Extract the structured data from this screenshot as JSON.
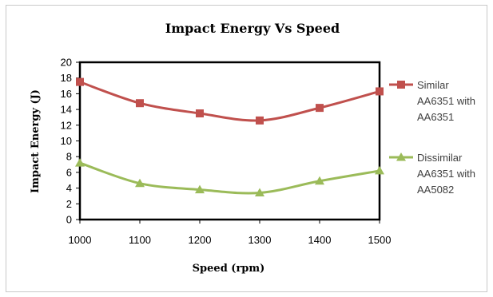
{
  "chart_data": {
    "type": "line",
    "title": "Impact Energy Vs Speed",
    "xlabel": "Speed (rpm)",
    "ylabel": "Impact Energy (J)",
    "x": [
      1000,
      1100,
      1200,
      1300,
      1400,
      1500
    ],
    "ylim": [
      0,
      20
    ],
    "yticks": [
      0,
      2,
      4,
      6,
      8,
      10,
      12,
      14,
      16,
      18,
      20
    ],
    "xtick_labels": [
      "1000",
      "1100",
      "1200",
      "1300",
      "1400",
      "1500"
    ],
    "legend_position": "right",
    "grid": false,
    "series": [
      {
        "name": "Similar AA6351 with AA6351",
        "legend_lines": [
          "Similar",
          "AA6351 with",
          "AA6351"
        ],
        "values": [
          17.5,
          14.8,
          13.5,
          12.6,
          14.2,
          16.3
        ],
        "color": "#c0504d",
        "marker": "square"
      },
      {
        "name": "Dissimilar AA6351 with AA5082",
        "legend_lines": [
          "Dissimilar",
          "AA6351 with",
          "AA5082"
        ],
        "values": [
          7.2,
          4.6,
          3.8,
          3.4,
          4.9,
          6.2
        ],
        "color": "#9bbb59",
        "marker": "triangle"
      }
    ]
  }
}
